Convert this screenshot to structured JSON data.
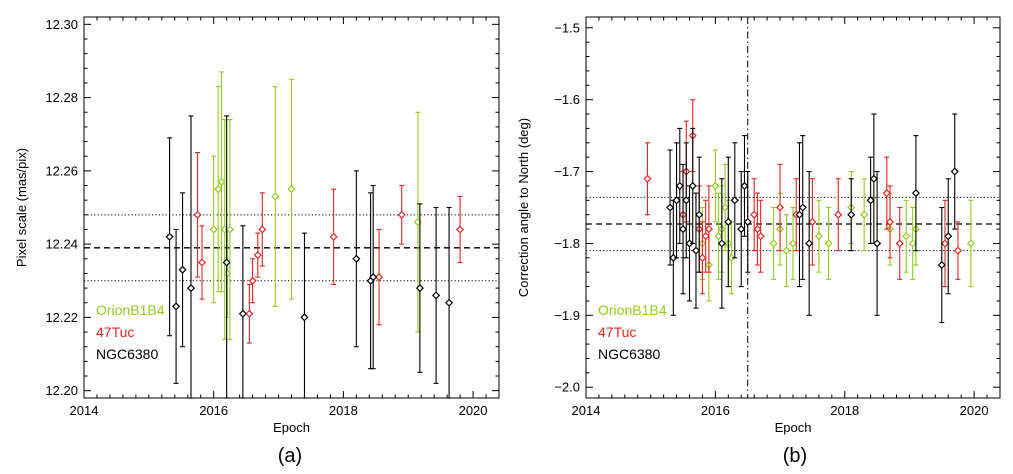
{
  "colors": {
    "OrionB1B4": "#8fcc1f",
    "47Tuc": "#e8241f",
    "NGC6380": "#000000"
  },
  "chart_data": [
    {
      "type": "scatter",
      "caption": "(a)",
      "xlabel": "Epoch",
      "ylabel": "Pixel scale (mas/pix)",
      "xlim": [
        2014,
        2020.4
      ],
      "ylim": [
        12.198,
        12.302
      ],
      "xticks": [
        2014,
        2016,
        2018,
        2020
      ],
      "yticks": [
        12.2,
        12.22,
        12.24,
        12.26,
        12.28,
        12.3
      ],
      "ytick_labels": [
        "12.20",
        "12.22",
        "12.24",
        "12.26",
        "12.28",
        "12.30"
      ],
      "reference_lines": [
        {
          "style": "dashed",
          "y": 12.239
        },
        {
          "style": "dotted",
          "y": 12.248
        },
        {
          "style": "dotted",
          "y": 12.23
        }
      ],
      "legend": {
        "placement": "bottom-left",
        "entries": [
          "OrionB1B4",
          "47Tuc",
          "NGC6380"
        ]
      },
      "series": [
        {
          "name": "OrionB1B4",
          "points": [
            {
              "x": 2016.0,
              "y": 12.244,
              "err": 0.02
            },
            {
              "x": 2016.07,
              "y": 12.255,
              "err": 0.028
            },
            {
              "x": 2016.12,
              "y": 12.257,
              "err": 0.03
            },
            {
              "x": 2016.17,
              "y": 12.244,
              "err": 0.03
            },
            {
              "x": 2016.21,
              "y": 12.232,
              "err": 0.012
            },
            {
              "x": 2016.25,
              "y": 12.244,
              "err": 0.03
            },
            {
              "x": 2016.95,
              "y": 12.253,
              "err": 0.03
            },
            {
              "x": 2017.2,
              "y": 12.255,
              "err": 0.03
            },
            {
              "x": 2019.15,
              "y": 12.246,
              "err": 0.03
            }
          ]
        },
        {
          "name": "47Tuc",
          "points": [
            {
              "x": 2015.75,
              "y": 12.248,
              "err": 0.017
            },
            {
              "x": 2015.82,
              "y": 12.235,
              "err": 0.01
            },
            {
              "x": 2016.55,
              "y": 12.221,
              "err": 0.008
            },
            {
              "x": 2016.6,
              "y": 12.23,
              "err": 0.006
            },
            {
              "x": 2016.68,
              "y": 12.237,
              "err": 0.006
            },
            {
              "x": 2016.75,
              "y": 12.244,
              "err": 0.01
            },
            {
              "x": 2017.85,
              "y": 12.242,
              "err": 0.013
            },
            {
              "x": 2018.55,
              "y": 12.231,
              "err": 0.013
            },
            {
              "x": 2018.9,
              "y": 12.248,
              "err": 0.008
            },
            {
              "x": 2019.8,
              "y": 12.244,
              "err": 0.009
            }
          ]
        },
        {
          "name": "NGC6380",
          "points": [
            {
              "x": 2015.32,
              "y": 12.242,
              "err": 0.027
            },
            {
              "x": 2015.42,
              "y": 12.223,
              "err": 0.021
            },
            {
              "x": 2015.52,
              "y": 12.233,
              "err": 0.021
            },
            {
              "x": 2015.65,
              "y": 12.228,
              "err": 0.047
            },
            {
              "x": 2016.2,
              "y": 12.235,
              "err": 0.04
            },
            {
              "x": 2016.45,
              "y": 12.221,
              "err": 0.024
            },
            {
              "x": 2017.4,
              "y": 12.22,
              "err": 0.023
            },
            {
              "x": 2018.2,
              "y": 12.236,
              "err": 0.024
            },
            {
              "x": 2018.42,
              "y": 12.23,
              "err": 0.024
            },
            {
              "x": 2018.46,
              "y": 12.231,
              "err": 0.025
            },
            {
              "x": 2019.18,
              "y": 12.228,
              "err": 0.023
            },
            {
              "x": 2019.43,
              "y": 12.226,
              "err": 0.024
            },
            {
              "x": 2019.63,
              "y": 12.224,
              "err": 0.026
            }
          ]
        }
      ]
    },
    {
      "type": "scatter",
      "caption": "(b)",
      "xlabel": "Epoch",
      "ylabel": "Correction angle to North (deg)",
      "xlim": [
        2014,
        2020.4
      ],
      "ylim": [
        -2.015,
        -1.485
      ],
      "xticks": [
        2014,
        2016,
        2018,
        2020
      ],
      "yticks": [
        -2.0,
        -1.9,
        -1.8,
        -1.7,
        -1.6,
        -1.5
      ],
      "ytick_labels": [
        "−2.0",
        "−1.9",
        "−1.8",
        "−1.7",
        "−1.6",
        "−1.5"
      ],
      "reference_lines": [
        {
          "style": "dashed",
          "y": -1.773
        },
        {
          "style": "dotted",
          "y": -1.736
        },
        {
          "style": "dotted",
          "y": -1.81
        },
        {
          "style": "dash-dot-vertical",
          "x": 2016.5
        }
      ],
      "legend": {
        "placement": "bottom-left",
        "entries": [
          "OrionB1B4",
          "47Tuc",
          "NGC6380"
        ]
      },
      "series": [
        {
          "name": "OrionB1B4",
          "points": [
            {
              "x": 2015.8,
              "y": -1.8,
              "err": 0.05
            },
            {
              "x": 2015.9,
              "y": -1.83,
              "err": 0.05
            },
            {
              "x": 2016.0,
              "y": -1.72,
              "err": 0.05
            },
            {
              "x": 2016.05,
              "y": -1.79,
              "err": 0.06
            },
            {
              "x": 2016.1,
              "y": -1.78,
              "err": 0.06
            },
            {
              "x": 2016.15,
              "y": -1.75,
              "err": 0.06
            },
            {
              "x": 2016.2,
              "y": -1.8,
              "err": 0.06
            },
            {
              "x": 2016.25,
              "y": -1.82,
              "err": 0.05
            },
            {
              "x": 2016.9,
              "y": -1.8,
              "err": 0.05
            },
            {
              "x": 2017.0,
              "y": -1.78,
              "err": 0.05
            },
            {
              "x": 2017.1,
              "y": -1.81,
              "err": 0.05
            },
            {
              "x": 2017.2,
              "y": -1.8,
              "err": 0.05
            },
            {
              "x": 2017.6,
              "y": -1.79,
              "err": 0.05
            },
            {
              "x": 2017.75,
              "y": -1.8,
              "err": 0.05
            },
            {
              "x": 2018.1,
              "y": -1.75,
              "err": 0.05
            },
            {
              "x": 2018.3,
              "y": -1.76,
              "err": 0.05
            },
            {
              "x": 2018.7,
              "y": -1.78,
              "err": 0.05
            },
            {
              "x": 2018.95,
              "y": -1.79,
              "err": 0.05
            },
            {
              "x": 2019.05,
              "y": -1.8,
              "err": 0.05
            },
            {
              "x": 2019.1,
              "y": -1.78,
              "err": 0.05
            },
            {
              "x": 2019.95,
              "y": -1.8,
              "err": 0.06
            }
          ]
        },
        {
          "name": "47Tuc",
          "points": [
            {
              "x": 2014.95,
              "y": -1.71,
              "err": 0.05
            },
            {
              "x": 2015.5,
              "y": -1.76,
              "err": 0.06
            },
            {
              "x": 2015.55,
              "y": -1.7,
              "err": 0.07
            },
            {
              "x": 2015.65,
              "y": -1.65,
              "err": 0.05
            },
            {
              "x": 2015.75,
              "y": -1.78,
              "err": 0.06
            },
            {
              "x": 2015.8,
              "y": -1.82,
              "err": 0.05
            },
            {
              "x": 2015.85,
              "y": -1.79,
              "err": 0.05
            },
            {
              "x": 2015.9,
              "y": -1.78,
              "err": 0.06
            },
            {
              "x": 2016.6,
              "y": -1.76,
              "err": 0.05
            },
            {
              "x": 2016.65,
              "y": -1.78,
              "err": 0.05
            },
            {
              "x": 2016.7,
              "y": -1.79,
              "err": 0.05
            },
            {
              "x": 2017.0,
              "y": -1.75,
              "err": 0.06
            },
            {
              "x": 2017.25,
              "y": -1.76,
              "err": 0.05
            },
            {
              "x": 2017.5,
              "y": -1.77,
              "err": 0.06
            },
            {
              "x": 2017.9,
              "y": -1.76,
              "err": 0.05
            },
            {
              "x": 2018.65,
              "y": -1.73,
              "err": 0.05
            },
            {
              "x": 2018.7,
              "y": -1.77,
              "err": 0.05
            },
            {
              "x": 2018.85,
              "y": -1.8,
              "err": 0.05
            },
            {
              "x": 2019.55,
              "y": -1.8,
              "err": 0.06
            },
            {
              "x": 2019.75,
              "y": -1.81,
              "err": 0.04
            }
          ]
        },
        {
          "name": "NGC6380",
          "points": [
            {
              "x": 2015.3,
              "y": -1.75,
              "err": 0.08
            },
            {
              "x": 2015.35,
              "y": -1.82,
              "err": 0.08
            },
            {
              "x": 2015.4,
              "y": -1.74,
              "err": 0.08
            },
            {
              "x": 2015.45,
              "y": -1.72,
              "err": 0.08
            },
            {
              "x": 2015.5,
              "y": -1.78,
              "err": 0.09
            },
            {
              "x": 2015.55,
              "y": -1.74,
              "err": 0.08
            },
            {
              "x": 2015.6,
              "y": -1.8,
              "err": 0.08
            },
            {
              "x": 2015.65,
              "y": -1.72,
              "err": 0.08
            },
            {
              "x": 2015.7,
              "y": -1.81,
              "err": 0.08
            },
            {
              "x": 2015.75,
              "y": -1.76,
              "err": 0.08
            },
            {
              "x": 2016.1,
              "y": -1.8,
              "err": 0.09
            },
            {
              "x": 2016.2,
              "y": -1.77,
              "err": 0.09
            },
            {
              "x": 2016.3,
              "y": -1.74,
              "err": 0.08
            },
            {
              "x": 2016.4,
              "y": -1.78,
              "err": 0.08
            },
            {
              "x": 2016.45,
              "y": -1.72,
              "err": 0.07
            },
            {
              "x": 2016.5,
              "y": -1.77,
              "err": 0.07
            },
            {
              "x": 2017.3,
              "y": -1.76,
              "err": 0.1
            },
            {
              "x": 2017.35,
              "y": -1.75,
              "err": 0.1
            },
            {
              "x": 2017.45,
              "y": -1.8,
              "err": 0.1
            },
            {
              "x": 2018.1,
              "y": -1.76,
              "err": 0.05
            },
            {
              "x": 2018.4,
              "y": -1.74,
              "err": 0.06
            },
            {
              "x": 2018.45,
              "y": -1.71,
              "err": 0.09
            },
            {
              "x": 2018.5,
              "y": -1.8,
              "err": 0.1
            },
            {
              "x": 2019.1,
              "y": -1.73,
              "err": 0.08
            },
            {
              "x": 2019.5,
              "y": -1.83,
              "err": 0.08
            },
            {
              "x": 2019.6,
              "y": -1.79,
              "err": 0.08
            },
            {
              "x": 2019.7,
              "y": -1.7,
              "err": 0.08
            }
          ]
        }
      ]
    }
  ]
}
